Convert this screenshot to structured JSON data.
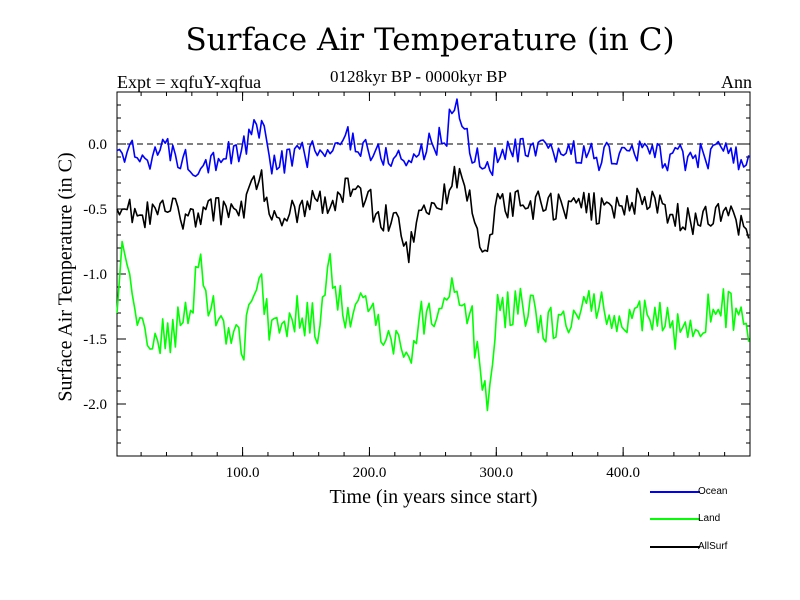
{
  "header": {
    "title": "Surface Air Temperature (in C)",
    "expt": "Expt = xqfuY-xqfua",
    "period": "0128kyr BP - 0000kyr BP",
    "season": "Ann"
  },
  "chart_data": {
    "type": "line",
    "title": "Surface Air Temperature (in C)",
    "xlabel": "Time (in years since start)",
    "ylabel": "Surface Air Temperature (in C)",
    "xlim": [
      1,
      500
    ],
    "ylim": [
      -2.4,
      0.4
    ],
    "xticks": [
      100,
      200,
      300,
      400
    ],
    "xtick_labels": [
      "100.0",
      "200.0",
      "300.0",
      "400.0"
    ],
    "yticks": [
      0.0,
      -0.5,
      -1.0,
      -1.5,
      -2.0
    ],
    "ytick_labels": [
      "0.0",
      "-0.5",
      "-1.0",
      "-1.5",
      "-2.0"
    ],
    "reference_line": 0.0,
    "series": [
      {
        "name": "Ocean",
        "color": "#0000ff",
        "x": [
          1,
          20,
          40,
          60,
          80,
          100,
          115,
          120,
          140,
          160,
          170,
          180,
          200,
          210,
          220,
          230,
          240,
          260,
          268,
          280,
          292,
          300,
          320,
          340,
          360,
          380,
          400,
          420,
          440,
          460,
          480,
          500
        ],
        "values": [
          -0.05,
          -0.1,
          -0.05,
          -0.15,
          -0.1,
          -0.05,
          0.18,
          -0.15,
          -0.1,
          -0.05,
          -0.12,
          0.08,
          -0.05,
          -0.1,
          -0.08,
          -0.15,
          -0.05,
          0.05,
          0.35,
          -0.05,
          -0.2,
          -0.1,
          -0.05,
          -0.08,
          -0.05,
          -0.1,
          -0.08,
          -0.05,
          -0.12,
          -0.1,
          -0.05,
          -0.2
        ]
      },
      {
        "name": "Land",
        "color": "#00ff00",
        "x": [
          1,
          5,
          20,
          40,
          60,
          65,
          80,
          100,
          115,
          120,
          140,
          160,
          170,
          180,
          200,
          210,
          220,
          230,
          240,
          260,
          268,
          280,
          293,
          300,
          320,
          340,
          360,
          380,
          400,
          420,
          440,
          460,
          480,
          500
        ],
        "values": [
          -1.3,
          -0.75,
          -1.45,
          -1.5,
          -1.3,
          -0.95,
          -1.35,
          -1.55,
          -1.0,
          -1.4,
          -1.3,
          -1.4,
          -0.95,
          -1.35,
          -1.25,
          -1.4,
          -1.5,
          -1.7,
          -1.35,
          -1.2,
          -1.05,
          -1.35,
          -2.05,
          -1.3,
          -1.25,
          -1.4,
          -1.35,
          -1.2,
          -1.4,
          -1.3,
          -1.45,
          -1.35,
          -1.25,
          -1.4
        ]
      },
      {
        "name": "AllSurf",
        "color": "#000000",
        "x": [
          1,
          20,
          40,
          60,
          80,
          100,
          115,
          120,
          140,
          160,
          170,
          180,
          200,
          210,
          220,
          230,
          240,
          260,
          268,
          280,
          292,
          300,
          320,
          340,
          360,
          380,
          400,
          420,
          440,
          460,
          480,
          500
        ],
        "values": [
          -0.5,
          -0.55,
          -0.5,
          -0.6,
          -0.5,
          -0.55,
          -0.2,
          -0.55,
          -0.5,
          -0.45,
          -0.55,
          -0.35,
          -0.45,
          -0.6,
          -0.55,
          -0.9,
          -0.5,
          -0.4,
          -0.25,
          -0.45,
          -0.95,
          -0.5,
          -0.45,
          -0.5,
          -0.45,
          -0.5,
          -0.45,
          -0.4,
          -0.55,
          -0.6,
          -0.5,
          -0.65
        ]
      }
    ],
    "legend": {
      "position": "bottom-right",
      "entries": [
        "Ocean",
        "Land",
        "AllSurf"
      ]
    }
  }
}
